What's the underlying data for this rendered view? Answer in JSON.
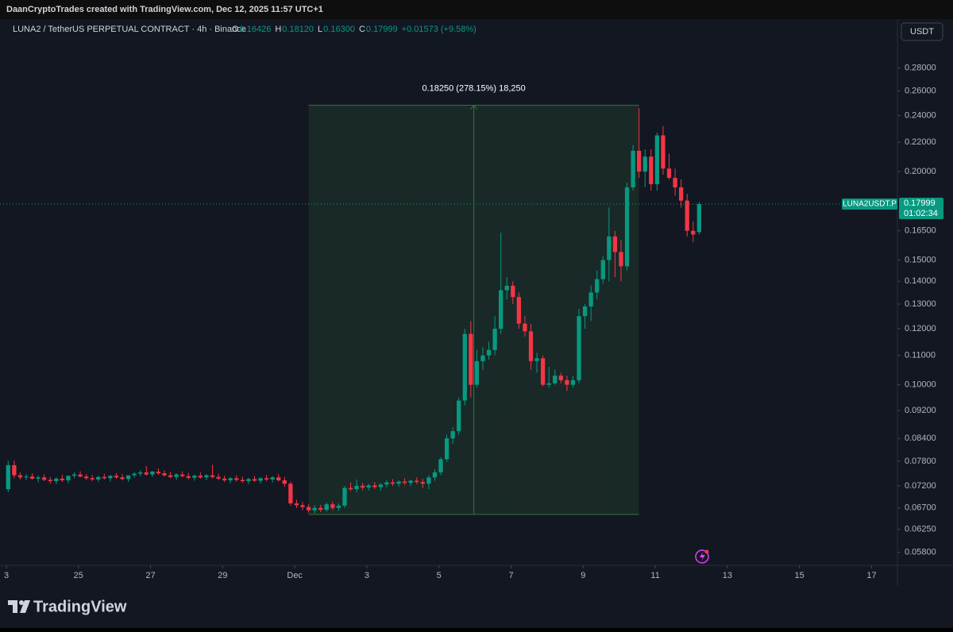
{
  "header": {
    "credit": "DaanCryptoTrades created with TradingView.com, Dec 12, 2025 11:57 UTC+1"
  },
  "chart_data": {
    "type": "candlestick",
    "title": "LUNA2 / TetherUS PERPETUAL CONTRACT · 4h · Binance",
    "ohlc_legend": [
      {
        "key": "O",
        "value": "0.16426"
      },
      {
        "key": "H",
        "value": "0.18120"
      },
      {
        "key": "L",
        "value": "0.16300"
      },
      {
        "key": "C",
        "value": "0.17999"
      }
    ],
    "change": "+0.01573 (+9.58%)",
    "currency": "USDT",
    "symbol_label": "LUNA2USDT.P",
    "countdown": "01:02:34",
    "up_color": "#089981",
    "down_color": "#f23645",
    "log_scale": true,
    "ylim": [
      0.0556,
      0.3276
    ],
    "yticks": [
      {
        "value": 0.28,
        "label": "0.28000"
      },
      {
        "value": 0.26,
        "label": "0.26000"
      },
      {
        "value": 0.24,
        "label": "0.24000"
      },
      {
        "value": 0.22,
        "label": "0.22000"
      },
      {
        "value": 0.2,
        "label": "0.20000"
      },
      {
        "value": 0.165,
        "label": "0.16500"
      },
      {
        "value": 0.15,
        "label": "0.15000"
      },
      {
        "value": 0.14,
        "label": "0.14000"
      },
      {
        "value": 0.13,
        "label": "0.13000"
      },
      {
        "value": 0.12,
        "label": "0.12000"
      },
      {
        "value": 0.11,
        "label": "0.11000"
      },
      {
        "value": 0.1,
        "label": "0.10000"
      },
      {
        "value": 0.092,
        "label": "0.09200"
      },
      {
        "value": 0.084,
        "label": "0.08400"
      },
      {
        "value": 0.078,
        "label": "0.07800"
      },
      {
        "value": 0.072,
        "label": "0.07200"
      },
      {
        "value": 0.067,
        "label": "0.06700"
      },
      {
        "value": 0.0625,
        "label": "0.06250"
      },
      {
        "value": 0.058,
        "label": "0.05800"
      }
    ],
    "xlim": [
      -1.36,
      148
    ],
    "xticks": [
      {
        "value": -0.3,
        "label": "3"
      },
      {
        "value": 11.7,
        "label": "25"
      },
      {
        "value": 23.7,
        "label": "27"
      },
      {
        "value": 35.7,
        "label": "29"
      },
      {
        "value": 47.7,
        "label": "Dec"
      },
      {
        "value": 59.7,
        "label": "3"
      },
      {
        "value": 71.7,
        "label": "5"
      },
      {
        "value": 83.7,
        "label": "7"
      },
      {
        "value": 95.7,
        "label": "9"
      },
      {
        "value": 107.7,
        "label": "11"
      },
      {
        "value": 119.7,
        "label": "13"
      },
      {
        "value": 131.7,
        "label": "15"
      },
      {
        "value": 143.7,
        "label": "17"
      }
    ],
    "measure": {
      "label": "0.18250 (278.15%) 18,250",
      "from": 0.06561,
      "to": 0.24811,
      "start": 50,
      "end": 105
    },
    "ohlc": [
      [
        0.0712,
        0.0781,
        0.0705,
        0.077
      ],
      [
        0.077,
        0.0782,
        0.0738,
        0.0745
      ],
      [
        0.0745,
        0.0752,
        0.0735,
        0.074
      ],
      [
        0.074,
        0.0748,
        0.0733,
        0.0742
      ],
      [
        0.0742,
        0.075,
        0.0735,
        0.0737
      ],
      [
        0.0737,
        0.0745,
        0.0728,
        0.074
      ],
      [
        0.074,
        0.0747,
        0.0731,
        0.0734
      ],
      [
        0.0734,
        0.0741,
        0.0725,
        0.0731
      ],
      [
        0.0731,
        0.074,
        0.0724,
        0.0737
      ],
      [
        0.0737,
        0.0746,
        0.0729,
        0.0733
      ],
      [
        0.0733,
        0.0739,
        0.0726,
        0.0744
      ],
      [
        0.0744,
        0.0752,
        0.0738,
        0.0747
      ],
      [
        0.0747,
        0.0755,
        0.074,
        0.0742
      ],
      [
        0.0742,
        0.0748,
        0.0734,
        0.0738
      ],
      [
        0.0738,
        0.0746,
        0.0731,
        0.0735
      ],
      [
        0.0735,
        0.0744,
        0.0729,
        0.0741
      ],
      [
        0.0741,
        0.0749,
        0.0735,
        0.0738
      ],
      [
        0.0738,
        0.0745,
        0.073,
        0.0744
      ],
      [
        0.0744,
        0.0751,
        0.0737,
        0.074
      ],
      [
        0.074,
        0.0748,
        0.0733,
        0.0736
      ],
      [
        0.0736,
        0.0743,
        0.0729,
        0.0745
      ],
      [
        0.0745,
        0.0753,
        0.0739,
        0.0749
      ],
      [
        0.0749,
        0.0758,
        0.0742,
        0.0752
      ],
      [
        0.0752,
        0.0768,
        0.0744,
        0.0747
      ],
      [
        0.0747,
        0.0756,
        0.0741,
        0.0754
      ],
      [
        0.0754,
        0.0762,
        0.0746,
        0.075
      ],
      [
        0.075,
        0.0757,
        0.0742,
        0.0745
      ],
      [
        0.0745,
        0.0753,
        0.0738,
        0.0741
      ],
      [
        0.0741,
        0.075,
        0.0734,
        0.0747
      ],
      [
        0.0747,
        0.0755,
        0.074,
        0.0743
      ],
      [
        0.0743,
        0.0751,
        0.0735,
        0.0739
      ],
      [
        0.0739,
        0.0747,
        0.0732,
        0.0744
      ],
      [
        0.0744,
        0.0752,
        0.0737,
        0.074
      ],
      [
        0.074,
        0.0748,
        0.0733,
        0.0745
      ],
      [
        0.0745,
        0.0771,
        0.0738,
        0.0741
      ],
      [
        0.0741,
        0.0749,
        0.0734,
        0.0737
      ],
      [
        0.0737,
        0.0744,
        0.0729,
        0.0733
      ],
      [
        0.0733,
        0.0741,
        0.0726,
        0.0738
      ],
      [
        0.0738,
        0.0745,
        0.073,
        0.0734
      ],
      [
        0.0734,
        0.0742,
        0.0727,
        0.0731
      ],
      [
        0.0731,
        0.0739,
        0.0724,
        0.0736
      ],
      [
        0.0736,
        0.0743,
        0.0729,
        0.0732
      ],
      [
        0.0732,
        0.074,
        0.0725,
        0.0738
      ],
      [
        0.0738,
        0.0746,
        0.0731,
        0.0735
      ],
      [
        0.0735,
        0.0743,
        0.0728,
        0.074
      ],
      [
        0.074,
        0.0748,
        0.073,
        0.0733
      ],
      [
        0.0733,
        0.0741,
        0.0718,
        0.0725
      ],
      [
        0.0725,
        0.073,
        0.0675,
        0.068
      ],
      [
        0.068,
        0.0688,
        0.067,
        0.0676
      ],
      [
        0.0676,
        0.0683,
        0.0665,
        0.0672
      ],
      [
        0.0672,
        0.0678,
        0.066,
        0.0665
      ],
      [
        0.0665,
        0.0676,
        0.0658,
        0.067
      ],
      [
        0.067,
        0.0677,
        0.0661,
        0.0666
      ],
      [
        0.0666,
        0.0682,
        0.0662,
        0.0678
      ],
      [
        0.0678,
        0.0684,
        0.0665,
        0.067
      ],
      [
        0.067,
        0.068,
        0.0664,
        0.0675
      ],
      [
        0.0675,
        0.072,
        0.067,
        0.0715
      ],
      [
        0.0715,
        0.0728,
        0.0708,
        0.0712
      ],
      [
        0.0712,
        0.0735,
        0.0705,
        0.072
      ],
      [
        0.072,
        0.0727,
        0.071,
        0.0716
      ],
      [
        0.0716,
        0.0725,
        0.0709,
        0.0721
      ],
      [
        0.0721,
        0.0729,
        0.0713,
        0.0717
      ],
      [
        0.0717,
        0.0726,
        0.0708,
        0.0723
      ],
      [
        0.0723,
        0.0733,
        0.0716,
        0.0728
      ],
      [
        0.0728,
        0.0736,
        0.072,
        0.0725
      ],
      [
        0.0725,
        0.0733,
        0.0718,
        0.073
      ],
      [
        0.073,
        0.0738,
        0.0722,
        0.0727
      ],
      [
        0.0727,
        0.0735,
        0.0719,
        0.0732
      ],
      [
        0.0732,
        0.074,
        0.0724,
        0.0729
      ],
      [
        0.0729,
        0.0737,
        0.0715,
        0.0725
      ],
      [
        0.0725,
        0.0745,
        0.0712,
        0.074
      ],
      [
        0.074,
        0.076,
        0.0732,
        0.0752
      ],
      [
        0.0752,
        0.079,
        0.0745,
        0.0785
      ],
      [
        0.0785,
        0.085,
        0.0778,
        0.084
      ],
      [
        0.084,
        0.087,
        0.0825,
        0.086
      ],
      [
        0.086,
        0.096,
        0.085,
        0.095
      ],
      [
        0.095,
        0.12,
        0.0935,
        0.118
      ],
      [
        0.118,
        0.123,
        0.096,
        0.1
      ],
      [
        0.1,
        0.112,
        0.099,
        0.108
      ],
      [
        0.108,
        0.113,
        0.105,
        0.11
      ],
      [
        0.11,
        0.115,
        0.1085,
        0.112
      ],
      [
        0.112,
        0.125,
        0.11,
        0.12
      ],
      [
        0.12,
        0.164,
        0.118,
        0.136
      ],
      [
        0.136,
        0.142,
        0.132,
        0.138
      ],
      [
        0.138,
        0.14,
        0.13,
        0.133
      ],
      [
        0.133,
        0.135,
        0.12,
        0.122
      ],
      [
        0.122,
        0.125,
        0.117,
        0.119
      ],
      [
        0.119,
        0.122,
        0.105,
        0.108
      ],
      [
        0.108,
        0.111,
        0.104,
        0.109
      ],
      [
        0.109,
        0.11,
        0.0995,
        0.1
      ],
      [
        0.1,
        0.106,
        0.099,
        0.1005
      ],
      [
        0.1005,
        0.105,
        0.1,
        0.103
      ],
      [
        0.103,
        0.104,
        0.1005,
        0.1015
      ],
      [
        0.1015,
        0.103,
        0.098,
        0.1
      ],
      [
        0.1,
        0.103,
        0.099,
        0.1015
      ],
      [
        0.1015,
        0.128,
        0.1005,
        0.125
      ],
      [
        0.125,
        0.13,
        0.12,
        0.129
      ],
      [
        0.129,
        0.138,
        0.123,
        0.135
      ],
      [
        0.135,
        0.145,
        0.132,
        0.141
      ],
      [
        0.141,
        0.152,
        0.139,
        0.15
      ],
      [
        0.15,
        0.178,
        0.14,
        0.162
      ],
      [
        0.162,
        0.165,
        0.142,
        0.154
      ],
      [
        0.154,
        0.16,
        0.14,
        0.147
      ],
      [
        0.147,
        0.193,
        0.145,
        0.19
      ],
      [
        0.19,
        0.218,
        0.188,
        0.214
      ],
      [
        0.214,
        0.246,
        0.196,
        0.2
      ],
      [
        0.2,
        0.215,
        0.19,
        0.21
      ],
      [
        0.21,
        0.215,
        0.188,
        0.192
      ],
      [
        0.192,
        0.227,
        0.188,
        0.225
      ],
      [
        0.225,
        0.232,
        0.198,
        0.202
      ],
      [
        0.202,
        0.212,
        0.195,
        0.196
      ],
      [
        0.196,
        0.202,
        0.185,
        0.19
      ],
      [
        0.19,
        0.195,
        0.178,
        0.182
      ],
      [
        0.182,
        0.186,
        0.162,
        0.165
      ],
      [
        0.165,
        0.17,
        0.159,
        0.163
      ],
      [
        0.16426,
        0.1812,
        0.163,
        0.17999
      ]
    ]
  },
  "footer": {
    "brand": "TradingView"
  }
}
